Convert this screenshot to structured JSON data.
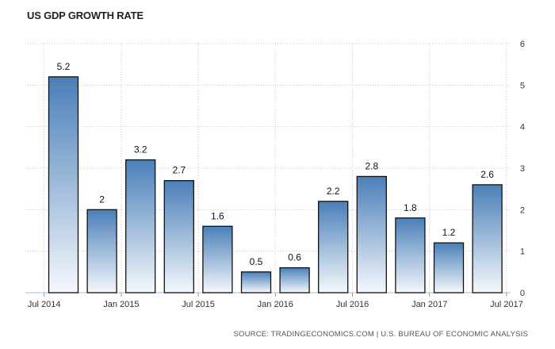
{
  "title": "US GDP GROWTH RATE",
  "source": "SOURCE: TRADINGECONOMICS.COM | U.S. BUREAU OF ECONOMIC ANALYSIS",
  "colors": {
    "bar_top": "#4a7fb8",
    "bar_bottom": "#f4f8fc",
    "bar_stroke": "#111111",
    "grid": "#c8c8c8",
    "axis": "#bfd3ea"
  },
  "chart_data": {
    "type": "bar",
    "title": "US GDP GROWTH RATE",
    "categories": [
      "2014-Q3",
      "2014-Q4",
      "2015-Q1",
      "2015-Q2",
      "2015-Q3",
      "2015-Q4",
      "2016-Q1",
      "2016-Q2",
      "2016-Q3",
      "2016-Q4",
      "2017-Q1",
      "2017-Q2"
    ],
    "values": [
      5.2,
      2,
      3.2,
      2.7,
      1.6,
      0.5,
      0.6,
      2.2,
      2.8,
      1.8,
      1.2,
      2.6
    ],
    "value_labels": [
      "5.2",
      "2",
      "3.2",
      "2.7",
      "1.6",
      "0.5",
      "0.6",
      "2.2",
      "2.8",
      "1.8",
      "1.2",
      "2.6"
    ],
    "x_tick_labels": [
      "Jul 2014",
      "Jan 2015",
      "Jul 2015",
      "Jan 2016",
      "Jul 2016",
      "Jan 2017",
      "Jul 2017"
    ],
    "x_tick_bar_index": [
      0,
      2,
      4,
      6,
      8,
      10,
      12
    ],
    "y_ticks": [
      0,
      1,
      2,
      3,
      4,
      5,
      6
    ],
    "ylim": [
      0,
      6
    ],
    "y_axis_side": "right",
    "grid": true,
    "xlabel": "",
    "ylabel": ""
  }
}
